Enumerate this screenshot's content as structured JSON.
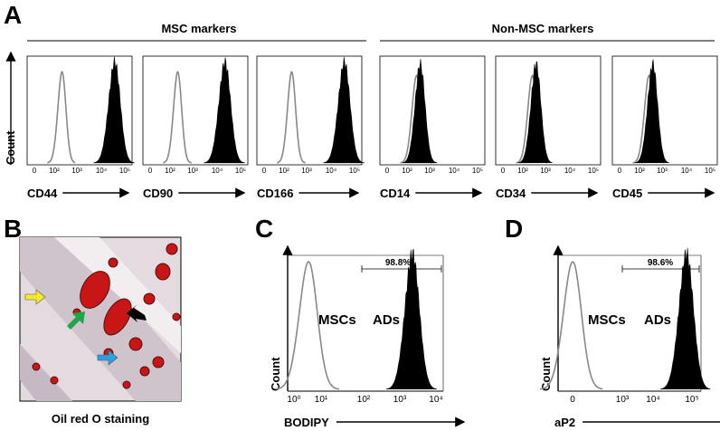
{
  "panel_a": {
    "label": "A",
    "groups": [
      {
        "title": "MSC markers"
      },
      {
        "title": "Non-MSC markers"
      }
    ],
    "y_label": "Count",
    "tick_labels": [
      "0",
      "10²",
      "10³",
      "10⁴",
      "10⁵"
    ],
    "plots": [
      "CD44",
      "CD90",
      "CD166",
      "CD14",
      "CD34",
      "CD45"
    ]
  },
  "panel_b": {
    "label": "B",
    "caption": "Oil red O staining"
  },
  "panel_c": {
    "label": "C",
    "y_label": "Count",
    "x_label": "BODIPY",
    "tick_labels": [
      "10⁰",
      "10¹",
      "10²",
      "10³",
      "10⁴"
    ],
    "curve_labels": [
      "MSCs",
      "ADs"
    ],
    "gate_label": "98.8%"
  },
  "panel_d": {
    "label": "D",
    "y_label": "Count",
    "x_label": "aP2",
    "tick_labels": [
      "0",
      "10³",
      "10⁴",
      "10⁵"
    ],
    "curve_labels": [
      "MSCs",
      "ADs"
    ],
    "gate_label": "98.6%"
  }
}
